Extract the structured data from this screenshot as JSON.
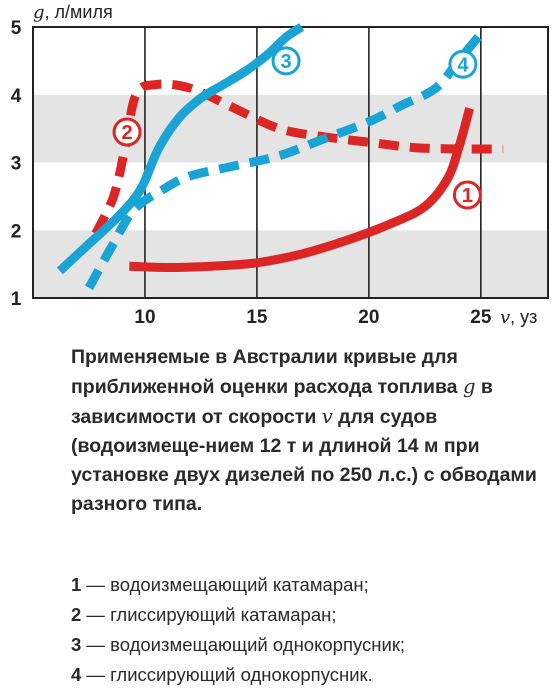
{
  "chart_data": {
    "type": "line",
    "y_axis": {
      "symbol": "g",
      "unit": ", л/миля",
      "ticks": [
        "1",
        "2",
        "3",
        "4",
        "5"
      ],
      "range": [
        1,
        5
      ]
    },
    "x_axis": {
      "symbol": "v",
      "unit": ", уз",
      "ticks": [
        "10",
        "15",
        "20",
        "25"
      ],
      "range": [
        5,
        28
      ]
    },
    "grid": "alternating horizontal bands",
    "series": [
      {
        "id": "1",
        "label": "1",
        "style": "solid",
        "color": "#dc2626",
        "x": [
          9.3,
          11,
          13,
          15,
          17,
          19,
          21,
          22.5,
          23.5,
          24,
          24.5
        ],
        "y": [
          1.47,
          1.45,
          1.47,
          1.52,
          1.65,
          1.85,
          2.1,
          2.35,
          2.75,
          3.2,
          3.8
        ]
      },
      {
        "id": "2",
        "label": "2",
        "style": "dashed",
        "color": "#dc2626",
        "x": [
          7.8,
          8.6,
          9.1,
          9.6,
          10.5,
          12,
          14,
          16,
          18,
          20,
          22,
          24,
          26
        ],
        "y": [
          1.95,
          2.5,
          3.2,
          4.0,
          4.15,
          4.1,
          3.8,
          3.5,
          3.38,
          3.3,
          3.22,
          3.2,
          3.2
        ]
      },
      {
        "id": "3",
        "label": "3",
        "style": "solid",
        "color": "#1aa4d6",
        "x": [
          6.2,
          7.5,
          8.8,
          9.8,
          10.6,
          11.5,
          12.5,
          13.5,
          14.5,
          15.5,
          16.3,
          17
        ],
        "y": [
          1.4,
          1.8,
          2.2,
          2.6,
          3.2,
          3.65,
          3.95,
          4.15,
          4.35,
          4.6,
          4.85,
          5.0
        ]
      },
      {
        "id": "4",
        "label": "4",
        "style": "dashed",
        "color": "#1aa4d6",
        "x": [
          7.5,
          8.5,
          9.5,
          10.8,
          12,
          14,
          16,
          18,
          20,
          21.5,
          23,
          24,
          25
        ],
        "y": [
          1.15,
          1.75,
          2.3,
          2.6,
          2.8,
          2.95,
          3.1,
          3.35,
          3.6,
          3.85,
          4.1,
          4.5,
          4.9
        ]
      }
    ]
  },
  "caption": {
    "part1": "Применяемые в Австралии кривые для приближенной оценки расхода топлива ",
    "var_g": "g",
    "part2": " в зависимости от скорости ",
    "var_v": "v",
    "part3": " для судов (водоизмеще-нием 12 т и длиной 14 м при установке двух дизелей по 250 л.с.) с обводами разного типа."
  },
  "legend": [
    {
      "num": "1",
      "text": " — водоизмещающий катамаран;"
    },
    {
      "num": "2",
      "text": " — глиссирующий катамаран;"
    },
    {
      "num": "3",
      "text": " — водоизмещающий однокорпусник;"
    },
    {
      "num": "4",
      "text": " — глиссирующий однокорпусник."
    }
  ]
}
